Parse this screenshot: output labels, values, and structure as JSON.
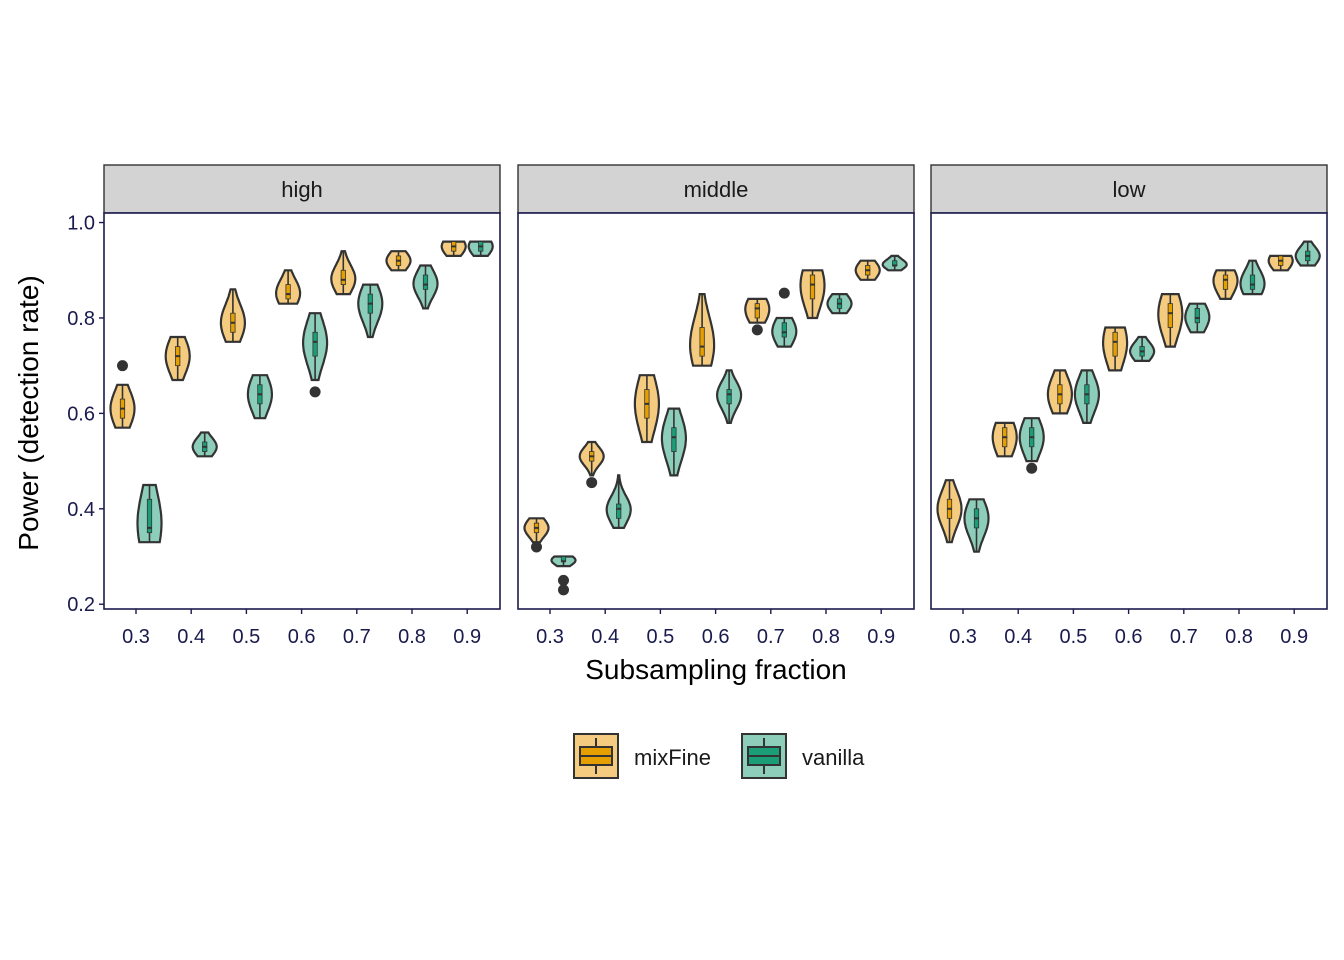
{
  "chart_data": {
    "type": "violin",
    "xlabel": "Subsampling fraction",
    "ylabel": "Power (detection rate)",
    "ylim": [
      0.19,
      1.02
    ],
    "yticks": [
      "0.2",
      "0.4",
      "0.6",
      "0.8",
      "1.0"
    ],
    "categories": [
      "0.3",
      "0.4",
      "0.5",
      "0.6",
      "0.7",
      "0.8",
      "0.9"
    ],
    "legend_position": "bottom",
    "facets": [
      {
        "label": "high",
        "series": [
          {
            "name": "mixFine",
            "color": "#E69F00",
            "fill": "#F5CC7F",
            "violins": [
              {
                "min": 0.57,
                "q1": 0.59,
                "median": 0.61,
                "q3": 0.63,
                "max": 0.66,
                "outliers": [
                  0.7
                ]
              },
              {
                "min": 0.67,
                "q1": 0.7,
                "median": 0.72,
                "q3": 0.74,
                "max": 0.76,
                "outliers": []
              },
              {
                "min": 0.75,
                "q1": 0.77,
                "median": 0.79,
                "q3": 0.81,
                "max": 0.86,
                "outliers": []
              },
              {
                "min": 0.83,
                "q1": 0.84,
                "median": 0.85,
                "q3": 0.87,
                "max": 0.9,
                "outliers": []
              },
              {
                "min": 0.85,
                "q1": 0.87,
                "median": 0.88,
                "q3": 0.9,
                "max": 0.94,
                "outliers": []
              },
              {
                "min": 0.9,
                "q1": 0.91,
                "median": 0.92,
                "q3": 0.93,
                "max": 0.94,
                "outliers": []
              },
              {
                "min": 0.93,
                "q1": 0.94,
                "median": 0.95,
                "q3": 0.96,
                "max": 0.96,
                "outliers": []
              }
            ]
          },
          {
            "name": "vanilla",
            "color": "#1B9E77",
            "fill": "#8DCEBB",
            "violins": [
              {
                "min": 0.33,
                "q1": 0.35,
                "median": 0.36,
                "q3": 0.42,
                "max": 0.45,
                "outliers": []
              },
              {
                "min": 0.51,
                "q1": 0.52,
                "median": 0.53,
                "q3": 0.54,
                "max": 0.56,
                "outliers": []
              },
              {
                "min": 0.59,
                "q1": 0.62,
                "median": 0.64,
                "q3": 0.66,
                "max": 0.68,
                "outliers": []
              },
              {
                "min": 0.67,
                "q1": 0.72,
                "median": 0.75,
                "q3": 0.77,
                "max": 0.81,
                "outliers": [
                  0.645
                ]
              },
              {
                "min": 0.76,
                "q1": 0.81,
                "median": 0.83,
                "q3": 0.85,
                "max": 0.87,
                "outliers": []
              },
              {
                "min": 0.82,
                "q1": 0.86,
                "median": 0.87,
                "q3": 0.89,
                "max": 0.91,
                "outliers": []
              },
              {
                "min": 0.93,
                "q1": 0.94,
                "median": 0.95,
                "q3": 0.96,
                "max": 0.96,
                "outliers": []
              }
            ]
          }
        ]
      },
      {
        "label": "middle",
        "series": [
          {
            "name": "mixFine",
            "color": "#E69F00",
            "fill": "#F5CC7F",
            "violins": [
              {
                "min": 0.33,
                "q1": 0.35,
                "median": 0.36,
                "q3": 0.37,
                "max": 0.38,
                "outliers": [
                  0.32
                ]
              },
              {
                "min": 0.47,
                "q1": 0.5,
                "median": 0.51,
                "q3": 0.52,
                "max": 0.54,
                "outliers": [
                  0.455
                ]
              },
              {
                "min": 0.54,
                "q1": 0.59,
                "median": 0.62,
                "q3": 0.65,
                "max": 0.68,
                "outliers": []
              },
              {
                "min": 0.7,
                "q1": 0.72,
                "median": 0.74,
                "q3": 0.78,
                "max": 0.85,
                "outliers": []
              },
              {
                "min": 0.79,
                "q1": 0.8,
                "median": 0.82,
                "q3": 0.83,
                "max": 0.84,
                "outliers": [
                  0.775
                ]
              },
              {
                "min": 0.8,
                "q1": 0.84,
                "median": 0.87,
                "q3": 0.89,
                "max": 0.9,
                "outliers": []
              },
              {
                "min": 0.88,
                "q1": 0.89,
                "median": 0.9,
                "q3": 0.91,
                "max": 0.92,
                "outliers": []
              }
            ]
          },
          {
            "name": "vanilla",
            "color": "#1B9E77",
            "fill": "#8DCEBB",
            "violins": [
              {
                "min": 0.28,
                "q1": 0.29,
                "median": 0.29,
                "q3": 0.3,
                "max": 0.3,
                "outliers": [
                  0.25,
                  0.23
                ]
              },
              {
                "min": 0.36,
                "q1": 0.38,
                "median": 0.4,
                "q3": 0.41,
                "max": 0.47,
                "outliers": []
              },
              {
                "min": 0.47,
                "q1": 0.52,
                "median": 0.55,
                "q3": 0.57,
                "max": 0.61,
                "outliers": []
              },
              {
                "min": 0.58,
                "q1": 0.62,
                "median": 0.64,
                "q3": 0.65,
                "max": 0.69,
                "outliers": []
              },
              {
                "min": 0.74,
                "q1": 0.76,
                "median": 0.77,
                "q3": 0.79,
                "max": 0.8,
                "outliers": [
                  0.852
                ]
              },
              {
                "min": 0.81,
                "q1": 0.82,
                "median": 0.83,
                "q3": 0.84,
                "max": 0.85,
                "outliers": []
              },
              {
                "min": 0.9,
                "q1": 0.91,
                "median": 0.91,
                "q3": 0.92,
                "max": 0.93,
                "outliers": []
              }
            ]
          }
        ]
      },
      {
        "label": "low",
        "series": [
          {
            "name": "mixFine",
            "color": "#E69F00",
            "fill": "#F5CC7F",
            "violins": [
              {
                "min": 0.33,
                "q1": 0.38,
                "median": 0.4,
                "q3": 0.42,
                "max": 0.46,
                "outliers": []
              },
              {
                "min": 0.51,
                "q1": 0.53,
                "median": 0.55,
                "q3": 0.57,
                "max": 0.58,
                "outliers": []
              },
              {
                "min": 0.6,
                "q1": 0.62,
                "median": 0.64,
                "q3": 0.66,
                "max": 0.69,
                "outliers": []
              },
              {
                "min": 0.69,
                "q1": 0.72,
                "median": 0.75,
                "q3": 0.77,
                "max": 0.78,
                "outliers": []
              },
              {
                "min": 0.74,
                "q1": 0.78,
                "median": 0.81,
                "q3": 0.83,
                "max": 0.85,
                "outliers": []
              },
              {
                "min": 0.84,
                "q1": 0.86,
                "median": 0.88,
                "q3": 0.89,
                "max": 0.9,
                "outliers": []
              },
              {
                "min": 0.9,
                "q1": 0.91,
                "median": 0.92,
                "q3": 0.93,
                "max": 0.93,
                "outliers": []
              }
            ]
          },
          {
            "name": "vanilla",
            "color": "#1B9E77",
            "fill": "#8DCEBB",
            "violins": [
              {
                "min": 0.31,
                "q1": 0.36,
                "median": 0.38,
                "q3": 0.4,
                "max": 0.42,
                "outliers": []
              },
              {
                "min": 0.5,
                "q1": 0.53,
                "median": 0.55,
                "q3": 0.57,
                "max": 0.59,
                "outliers": [
                  0.485
                ]
              },
              {
                "min": 0.58,
                "q1": 0.62,
                "median": 0.64,
                "q3": 0.66,
                "max": 0.69,
                "outliers": []
              },
              {
                "min": 0.71,
                "q1": 0.72,
                "median": 0.73,
                "q3": 0.74,
                "max": 0.76,
                "outliers": []
              },
              {
                "min": 0.77,
                "q1": 0.79,
                "median": 0.8,
                "q3": 0.82,
                "max": 0.83,
                "outliers": []
              },
              {
                "min": 0.85,
                "q1": 0.86,
                "median": 0.87,
                "q3": 0.89,
                "max": 0.92,
                "outliers": []
              },
              {
                "min": 0.91,
                "q1": 0.92,
                "median": 0.93,
                "q3": 0.94,
                "max": 0.96,
                "outliers": []
              }
            ]
          }
        ]
      }
    ],
    "legend": [
      {
        "name": "mixFine",
        "color": "#E69F00",
        "fill": "#F5CC7F"
      },
      {
        "name": "vanilla",
        "color": "#1B9E77",
        "fill": "#8DCEBB"
      }
    ]
  }
}
